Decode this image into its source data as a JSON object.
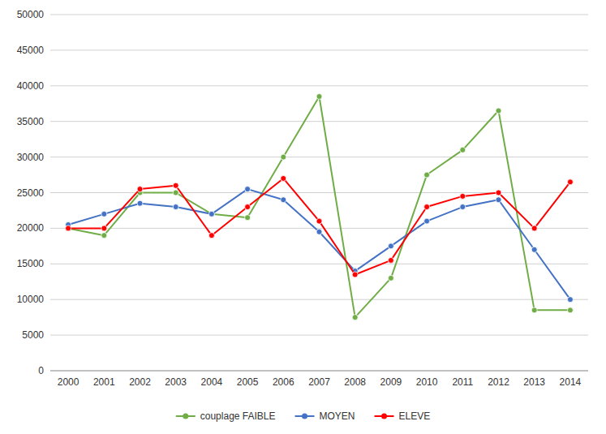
{
  "chart_data": {
    "type": "line",
    "x": [
      2000,
      2001,
      2002,
      2003,
      2004,
      2005,
      2006,
      2007,
      2008,
      2009,
      2010,
      2011,
      2012,
      2013,
      2014
    ],
    "xlim": [
      1999.5,
      2014.5
    ],
    "xticks": [
      2000,
      2001,
      2002,
      2003,
      2004,
      2005,
      2006,
      2007,
      2008,
      2009,
      2010,
      2011,
      2012,
      2013,
      2014
    ],
    "ylim": [
      0,
      50000
    ],
    "yticks": [
      0,
      5000,
      10000,
      15000,
      20000,
      25000,
      30000,
      35000,
      40000,
      45000,
      50000
    ],
    "grid": "y",
    "legend": "bottom",
    "marker": "circle",
    "series": [
      {
        "name": "couplage FAIBLE",
        "color": "#70AD47",
        "values": [
          20000,
          19000,
          25000,
          25000,
          22000,
          21500,
          30000,
          38500,
          7500,
          13000,
          27500,
          31000,
          36500,
          8500,
          8500
        ]
      },
      {
        "name": "MOYEN",
        "color": "#4472C4",
        "values": [
          20500,
          22000,
          23500,
          23000,
          22000,
          25500,
          24000,
          19500,
          14000,
          17500,
          21000,
          23000,
          24000,
          17000,
          10000
        ]
      },
      {
        "name": "ELEVE",
        "color": "#FF0000",
        "values": [
          20000,
          20000,
          25500,
          26000,
          19000,
          23000,
          27000,
          21000,
          13500,
          15500,
          23000,
          24500,
          25000,
          20000,
          26500
        ]
      }
    ]
  }
}
